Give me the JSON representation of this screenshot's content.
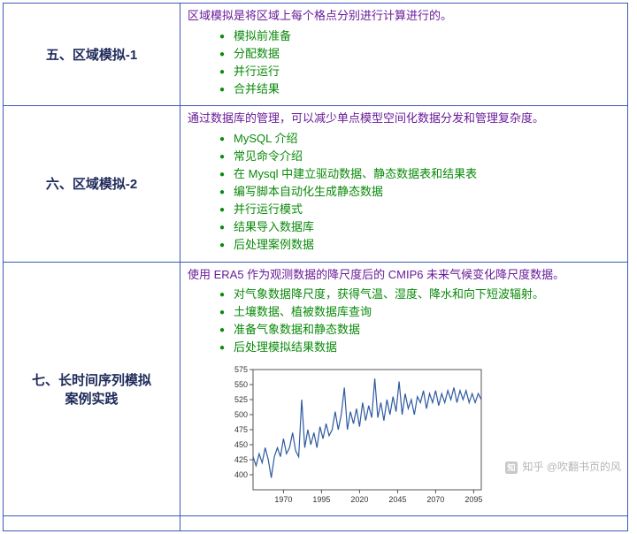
{
  "rows": [
    {
      "title": "五、区域模拟-1",
      "intro": "区域模拟是将区域上每个格点分别进行计算进行的。",
      "bullets": [
        "模拟前准备",
        "分配数据",
        "并行运行",
        "合并结果"
      ]
    },
    {
      "title": "六、区域模拟-2",
      "intro": "通过数据库的管理，可以减少单点模型空间化数据分发和管理复杂度。",
      "bullets": [
        "MySQL 介绍",
        "常见命令介绍",
        "在 Mysql 中建立驱动数据、静态数据表和结果表",
        "编写脚本自动化生成静态数据",
        "并行运行模式",
        "结果导入数据库",
        "后处理案例数据"
      ]
    },
    {
      "title": "七、长时间序列模拟案例实践",
      "intro": "使用 ERA5 作为观测数据的降尺度后的 CMIP6 未来气候变化降尺度数据。",
      "bullets": [
        "对气象数据降尺度，获得气温、湿度、降水和向下短波辐射。",
        "土壤数据、植被数据库查询",
        "准备气象数据和静态数据",
        "后处理模拟结果数据"
      ]
    }
  ],
  "colors": {
    "border": "#3b5bb5",
    "title_text": "#1e2a5a",
    "intro_text": "#6a1b9a",
    "bullet_text": "#0a8a0a"
  },
  "chart": {
    "type": "line",
    "xlim": [
      1950,
      2100
    ],
    "ylim": [
      375,
      575
    ],
    "xticks": [
      1970,
      1995,
      2020,
      2045,
      2070,
      2095
    ],
    "yticks": [
      400,
      425,
      450,
      475,
      500,
      525,
      550,
      575
    ],
    "line_color": "#2e5aa0",
    "line_width": 1.2,
    "background": "#ffffff",
    "border_color": "#555555",
    "series": [
      [
        1950,
        430
      ],
      [
        1952,
        415
      ],
      [
        1954,
        435
      ],
      [
        1956,
        420
      ],
      [
        1958,
        445
      ],
      [
        1960,
        425
      ],
      [
        1962,
        395
      ],
      [
        1964,
        430
      ],
      [
        1966,
        445
      ],
      [
        1968,
        430
      ],
      [
        1970,
        460
      ],
      [
        1972,
        435
      ],
      [
        1974,
        445
      ],
      [
        1976,
        470
      ],
      [
        1978,
        440
      ],
      [
        1980,
        430
      ],
      [
        1982,
        525
      ],
      [
        1984,
        445
      ],
      [
        1986,
        475
      ],
      [
        1988,
        450
      ],
      [
        1990,
        470
      ],
      [
        1992,
        445
      ],
      [
        1994,
        480
      ],
      [
        1996,
        460
      ],
      [
        1998,
        485
      ],
      [
        2000,
        465
      ],
      [
        2002,
        475
      ],
      [
        2004,
        505
      ],
      [
        2006,
        475
      ],
      [
        2008,
        500
      ],
      [
        2010,
        545
      ],
      [
        2012,
        475
      ],
      [
        2014,
        505
      ],
      [
        2016,
        485
      ],
      [
        2018,
        510
      ],
      [
        2020,
        480
      ],
      [
        2022,
        520
      ],
      [
        2024,
        490
      ],
      [
        2026,
        515
      ],
      [
        2028,
        495
      ],
      [
        2030,
        560
      ],
      [
        2032,
        495
      ],
      [
        2034,
        520
      ],
      [
        2036,
        490
      ],
      [
        2038,
        525
      ],
      [
        2040,
        500
      ],
      [
        2042,
        530
      ],
      [
        2044,
        505
      ],
      [
        2046,
        555
      ],
      [
        2048,
        500
      ],
      [
        2050,
        535
      ],
      [
        2052,
        510
      ],
      [
        2054,
        525
      ],
      [
        2056,
        500
      ],
      [
        2058,
        530
      ],
      [
        2060,
        520
      ],
      [
        2062,
        540
      ],
      [
        2064,
        510
      ],
      [
        2066,
        535
      ],
      [
        2068,
        520
      ],
      [
        2070,
        540
      ],
      [
        2072,
        515
      ],
      [
        2074,
        535
      ],
      [
        2076,
        520
      ],
      [
        2078,
        540
      ],
      [
        2080,
        525
      ],
      [
        2082,
        545
      ],
      [
        2084,
        520
      ],
      [
        2086,
        540
      ],
      [
        2088,
        525
      ],
      [
        2090,
        540
      ],
      [
        2092,
        520
      ],
      [
        2094,
        535
      ],
      [
        2096,
        520
      ],
      [
        2098,
        535
      ],
      [
        2100,
        525
      ]
    ]
  },
  "watermark": "知乎 @吹翻书页的风"
}
